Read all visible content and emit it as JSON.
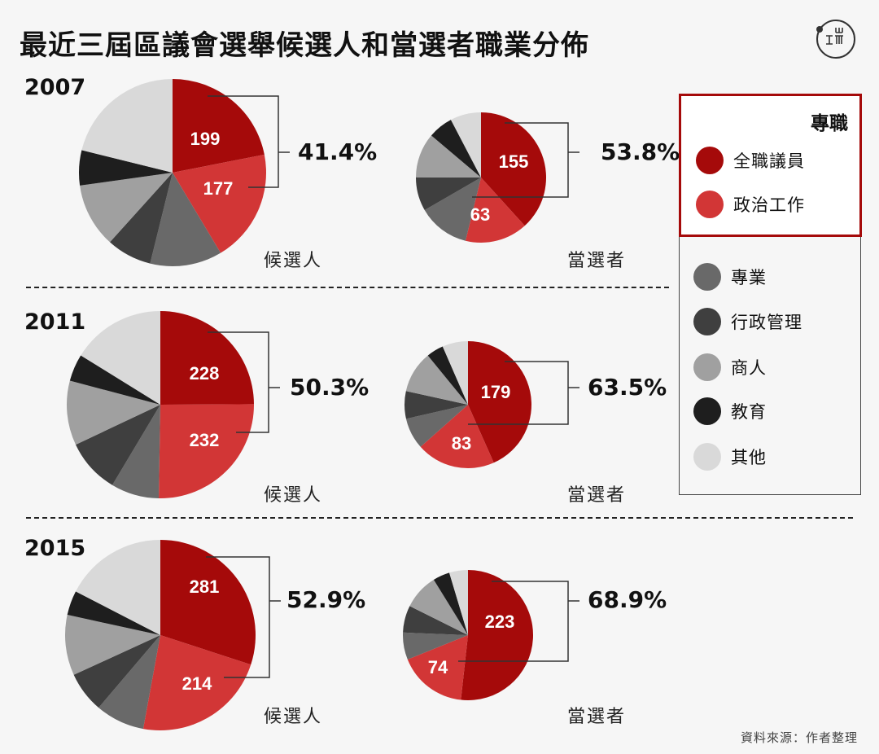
{
  "title": "最近三屆區議會選舉候選人和當選者職業分佈",
  "logo": {
    "text": "端",
    "glyph_top": "山",
    "glyph_bottom": "工而"
  },
  "source": "資料來源：作者整理",
  "legend": {
    "group_title": "專職",
    "items": [
      {
        "label": "全職議員",
        "color": "#a50a0a"
      },
      {
        "label": "政治工作",
        "color": "#d23636"
      },
      {
        "label": "專業",
        "color": "#696969"
      },
      {
        "label": "行政管理",
        "color": "#3f3f3f"
      },
      {
        "label": "商人",
        "color": "#a0a0a0"
      },
      {
        "label": "教育",
        "color": "#1e1e1e"
      },
      {
        "label": "其他",
        "color": "#d9d9d9"
      }
    ]
  },
  "labels": {
    "candidates": "候選人",
    "elected": "當選者"
  },
  "chart_data": [
    {
      "type": "pie",
      "year": "2007",
      "group": "候選人",
      "categories": [
        "全職議員",
        "政治工作",
        "專業",
        "行政管理",
        "商人",
        "教育",
        "其他"
      ],
      "values": [
        199,
        177,
        113,
        71,
        101,
        55,
        192
      ],
      "labeled_values": [
        "199",
        "177"
      ],
      "annotation": "41.4%"
    },
    {
      "type": "pie",
      "year": "2007",
      "group": "當選者",
      "categories": [
        "全職議員",
        "政治工作",
        "專業",
        "行政管理",
        "商人",
        "教育",
        "其他"
      ],
      "values": [
        155,
        63,
        52,
        34,
        45,
        25,
        31
      ],
      "labeled_values": [
        "155",
        "63"
      ],
      "annotation": "53.8%"
    },
    {
      "type": "pie",
      "year": "2011",
      "group": "候選人",
      "categories": [
        "全職議員",
        "政治工作",
        "專業",
        "行政管理",
        "商人",
        "教育",
        "其他"
      ],
      "values": [
        228,
        232,
        76,
        86,
        102,
        43,
        148
      ],
      "labeled_values": [
        "228",
        "232"
      ],
      "annotation": "50.3%"
    },
    {
      "type": "pie",
      "year": "2011",
      "group": "當選者",
      "categories": [
        "全職議員",
        "政治工作",
        "專業",
        "行政管理",
        "商人",
        "教育",
        "其他"
      ],
      "values": [
        179,
        83,
        33,
        29,
        44,
        18,
        27
      ],
      "labeled_values": [
        "179",
        "83"
      ],
      "annotation": "63.5%"
    },
    {
      "type": "pie",
      "year": "2015",
      "group": "候選人",
      "categories": [
        "全職議員",
        "政治工作",
        "專業",
        "行政管理",
        "商人",
        "教育",
        "其他"
      ],
      "values": [
        281,
        214,
        78,
        65,
        96,
        39,
        163
      ],
      "labeled_values": [
        "281",
        "214"
      ],
      "annotation": "52.9%"
    },
    {
      "type": "pie",
      "year": "2015",
      "group": "當選者",
      "categories": [
        "全職議員",
        "政治工作",
        "專業",
        "行政管理",
        "商人",
        "教育",
        "其他"
      ],
      "values": [
        223,
        74,
        29,
        29,
        38,
        18,
        20
      ],
      "labeled_values": [
        "223",
        "74"
      ],
      "annotation": "68.9%"
    }
  ],
  "sections": [
    {
      "year": "2007",
      "cand_pct": "41.4%",
      "elect_pct": "53.8%"
    },
    {
      "year": "2011",
      "cand_pct": "50.3%",
      "elect_pct": "63.5%"
    },
    {
      "year": "2015",
      "cand_pct": "52.9%",
      "elect_pct": "68.9%"
    }
  ]
}
